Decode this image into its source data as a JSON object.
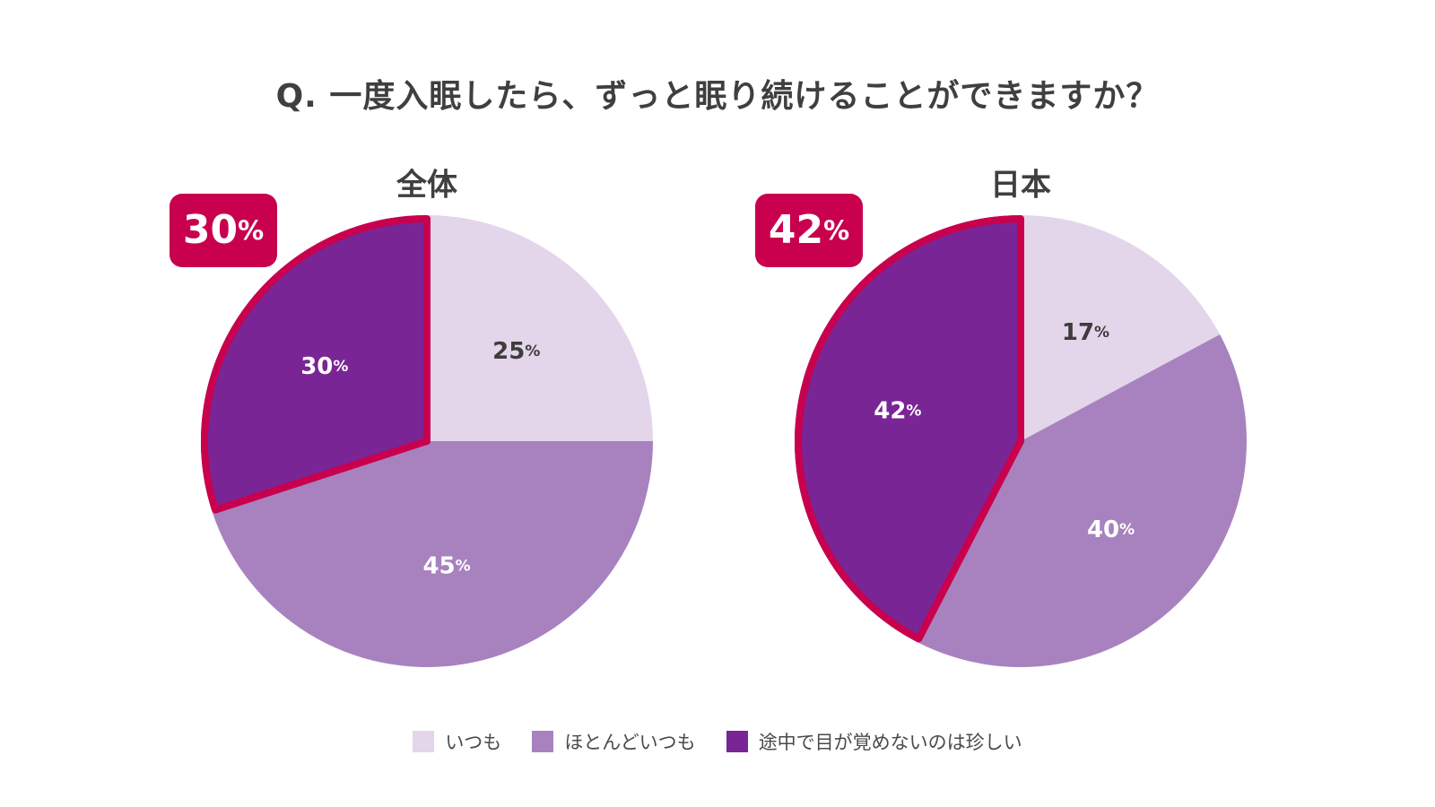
{
  "title": "Q. 一度入眠したら、ずっと眠り続けることができますか？",
  "legend": [
    {
      "label": "いつも",
      "color": "#e3d5ea"
    },
    {
      "label": "ほとんどいつも",
      "color": "#a882bf"
    },
    {
      "label": "途中で目が覚めないのは珍しい",
      "color": "#7a2595"
    }
  ],
  "accent_color": "#c8004e",
  "percent_suffix": "%",
  "chart_data": [
    {
      "type": "pie",
      "title": "全体",
      "categories": [
        "いつも",
        "ほとんどいつも",
        "途中で目が覚めないのは珍しい"
      ],
      "values": [
        25,
        45,
        30
      ],
      "label_texts": [
        "25",
        "45",
        "30"
      ],
      "highlight_index": 2,
      "badge": "30"
    },
    {
      "type": "pie",
      "title": "日本",
      "categories": [
        "いつも",
        "ほとんどいつも",
        "途中で目が覚めないのは珍しい"
      ],
      "values": [
        17,
        40,
        42
      ],
      "label_texts": [
        "17",
        "40",
        "42"
      ],
      "highlight_index": 2,
      "badge": "42"
    }
  ]
}
